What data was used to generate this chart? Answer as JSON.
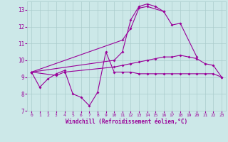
{
  "xlabel": "Windchill (Refroidissement éolien,°C)",
  "bg_color": "#cce8e8",
  "grid_color": "#aacccc",
  "line_color": "#990099",
  "xlim": [
    -0.5,
    23.5
  ],
  "ylim": [
    7,
    13.5
  ],
  "yticks": [
    7,
    8,
    9,
    10,
    11,
    12,
    13
  ],
  "xticks": [
    0,
    1,
    2,
    3,
    4,
    5,
    6,
    7,
    8,
    9,
    10,
    11,
    12,
    13,
    14,
    15,
    16,
    17,
    18,
    19,
    20,
    21,
    22,
    23
  ],
  "series": [
    {
      "x": [
        0,
        1,
        2,
        3,
        4,
        5,
        6,
        7,
        8,
        9,
        10,
        11,
        12,
        13,
        14,
        15,
        16,
        17,
        18,
        19,
        20,
        21,
        22,
        23
      ],
      "y": [
        9.3,
        8.4,
        8.9,
        9.2,
        9.4,
        8.0,
        7.8,
        7.3,
        8.1,
        10.5,
        9.3,
        9.3,
        9.3,
        9.2,
        9.2,
        9.2,
        9.2,
        9.2,
        9.2,
        9.2,
        9.2,
        9.2,
        9.2,
        9.0
      ]
    },
    {
      "x": [
        0,
        3,
        4,
        10,
        11,
        12,
        13,
        14,
        15,
        16,
        17,
        18,
        19,
        20,
        21,
        22,
        23
      ],
      "y": [
        9.3,
        9.1,
        9.3,
        9.6,
        9.7,
        9.8,
        9.9,
        10.0,
        10.1,
        10.2,
        10.2,
        10.3,
        10.2,
        10.1,
        9.8,
        9.7,
        9.0
      ]
    },
    {
      "x": [
        0,
        10,
        11,
        12,
        13,
        14,
        15,
        16,
        17,
        18,
        20
      ],
      "y": [
        9.3,
        10.0,
        10.5,
        12.4,
        13.2,
        13.35,
        13.2,
        12.9,
        12.1,
        12.2,
        10.2
      ]
    },
    {
      "x": [
        0,
        11,
        12,
        13,
        14,
        16
      ],
      "y": [
        9.3,
        11.2,
        11.9,
        13.1,
        13.2,
        12.9
      ]
    }
  ]
}
